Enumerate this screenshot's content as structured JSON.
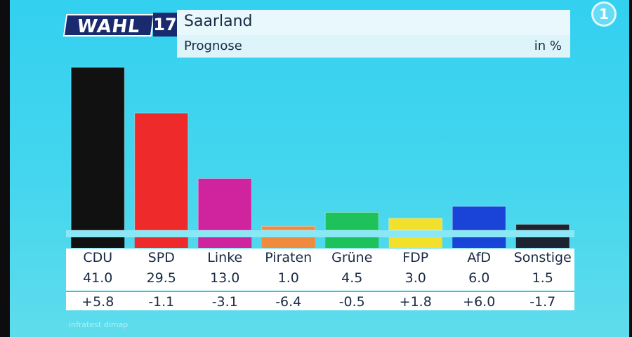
{
  "header": {
    "logo": "WAHL",
    "year": "17",
    "title": "Saarland",
    "subtitle": "Prognose",
    "unit": "in %"
  },
  "channel_logo": "1",
  "source": "infratest dimap",
  "chart_data": {
    "type": "bar",
    "title": "Saarland Prognose",
    "ylabel": "in %",
    "ylim": [
      0,
      41
    ],
    "categories": [
      "CDU",
      "SPD",
      "Linke",
      "Piraten",
      "Grüne",
      "FDP",
      "AfD",
      "Sonstige"
    ],
    "values": [
      41.0,
      29.5,
      13.0,
      1.0,
      4.5,
      3.0,
      6.0,
      1.5
    ],
    "value_labels": [
      "41.0",
      "29.5",
      "13.0",
      "1.0",
      "4.5",
      "3.0",
      "6.0",
      "1.5"
    ],
    "change_labels": [
      "+5.8",
      "-1.1",
      "-3.1",
      "-6.4",
      "-0.5",
      "+1.8",
      "+6.0",
      "-1.7"
    ],
    "colors": [
      "#111111",
      "#ee2a2a",
      "#d0239e",
      "#f08a3e",
      "#1ec25a",
      "#f2e02a",
      "#1a44d8",
      "#1d2330"
    ]
  }
}
